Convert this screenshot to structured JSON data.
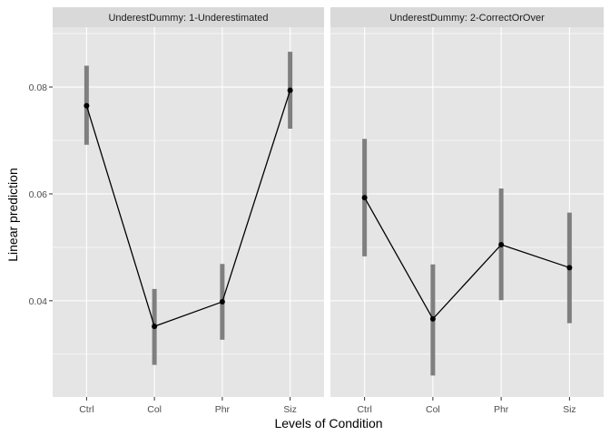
{
  "chart_data": {
    "type": "line",
    "xlabel": "Levels of Condition",
    "ylabel": "Linear prediction",
    "categories": [
      "Ctrl",
      "Col",
      "Phr",
      "Siz"
    ],
    "ylim": [
      0.022,
      0.0912
    ],
    "yticks": [
      0.04,
      0.06,
      0.08
    ],
    "ytick_labels": [
      "0.04",
      "0.06",
      "0.08"
    ],
    "grid": true,
    "legend": "none",
    "panels": [
      {
        "strip_label": "UnderestDummy: 1-Underestimated",
        "values": [
          0.0765,
          0.0352,
          0.0398,
          0.0794
        ],
        "ci_low": [
          0.0692,
          0.028,
          0.0327,
          0.0722
        ],
        "ci_high": [
          0.084,
          0.0422,
          0.0469,
          0.0866
        ]
      },
      {
        "strip_label": "UnderestDummy: 2-CorrectOrOver",
        "values": [
          0.0593,
          0.0366,
          0.0505,
          0.0462
        ],
        "ci_low": [
          0.0483,
          0.026,
          0.0401,
          0.0358
        ],
        "ci_high": [
          0.0703,
          0.0468,
          0.061,
          0.0565
        ]
      }
    ],
    "colors": {
      "panel_bg": "#e5e5e5",
      "strip_bg": "#d9d9d9",
      "grid": "#ffffff",
      "line": "#000000",
      "point": "#000000",
      "errorbar": "#7f7f7f"
    }
  }
}
